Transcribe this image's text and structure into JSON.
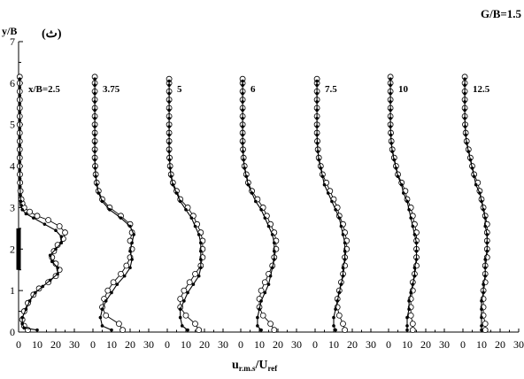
{
  "chart_data": {
    "type": "line",
    "title": "G/B=1.5",
    "panel_label": "(ث)",
    "ylabel": "y/B",
    "xlabel_main": "u",
    "xlabel_sub": "r.m.s",
    "xlabel_den": "/U",
    "xlabel_den_sub": "ref",
    "ylim": [
      0,
      7
    ],
    "yticks": [
      "0",
      "1",
      "2",
      "3",
      "4",
      "5",
      "6",
      "7"
    ],
    "xlim": [
      0,
      30
    ],
    "xticks": [
      "0",
      "10",
      "20",
      "30"
    ],
    "panels": [
      {
        "label": "x/B=2.5",
        "series": [
          {
            "marker": "open-circle",
            "y": [
              0.05,
              0.15,
              0.3,
              0.5,
              0.7,
              0.9,
              1.05,
              1.2,
              1.35,
              1.5,
              1.65,
              1.8,
              1.95,
              2.1,
              2.25,
              2.4,
              2.55,
              2.7,
              2.8,
              2.9,
              3.0,
              3.1,
              3.2,
              3.4,
              3.6,
              3.8,
              4.0,
              4.2,
              4.4,
              4.6,
              4.8,
              5.0,
              5.2,
              5.4,
              5.6,
              5.8,
              6.0,
              6.15
            ],
            "x": [
              5,
              3,
              2,
              3,
              5,
              8,
              11,
              16,
              20,
              22,
              20,
              18,
              19,
              21,
              24,
              25,
              22,
              16,
              10,
              6,
              3,
              2,
              1.5,
              1,
              0.8,
              0.7,
              0.6,
              0.6,
              0.6,
              0.6,
              0.6,
              0.6,
              0.6,
              0.6,
              0.6,
              0.6,
              0.6,
              0.6
            ]
          },
          {
            "marker": "filled-dot",
            "y": [
              0.05,
              0.1,
              0.2,
              0.35,
              0.55,
              0.75,
              0.95,
              1.1,
              1.25,
              1.4,
              1.55,
              1.7,
              1.85,
              2.0,
              2.15,
              2.3,
              2.45,
              2.6,
              2.75,
              2.85,
              2.95,
              3.05,
              3.15,
              3.3,
              3.5,
              3.7,
              3.9,
              4.1,
              4.3,
              4.5,
              4.7,
              4.9,
              5.1,
              5.3,
              5.5,
              5.7,
              5.9,
              6.1
            ],
            "x": [
              10,
              3,
              2,
              2,
              4,
              6,
              9,
              13,
              17,
              21,
              21,
              18,
              17,
              20,
              23,
              23,
              20,
              14,
              8,
              4,
              2,
              1.5,
              1.2,
              1,
              0.8,
              0.7,
              0.6,
              0.6,
              0.6,
              0.6,
              0.6,
              0.6,
              0.6,
              0.6,
              0.6,
              0.6,
              0.6,
              0.6
            ]
          }
        ]
      },
      {
        "label": "3.75",
        "series": [
          {
            "marker": "open-circle",
            "y": [
              0.05,
              0.2,
              0.4,
              0.6,
              0.8,
              1.0,
              1.2,
              1.4,
              1.6,
              1.8,
              2.0,
              2.2,
              2.4,
              2.6,
              2.8,
              3.0,
              3.2,
              3.4,
              3.6,
              3.8,
              4.0,
              4.2,
              4.4,
              4.6,
              4.8,
              5.0,
              5.2,
              5.4,
              5.6,
              5.8,
              6.0,
              6.15
            ],
            "x": [
              16,
              14,
              7,
              5,
              6,
              8,
              11,
              15,
              18,
              20,
              21,
              20,
              21,
              20,
              15,
              9,
              5,
              3,
              2,
              1.5,
              1.2,
              1,
              1,
              1,
              1,
              1,
              1,
              1,
              1,
              1,
              1,
              1
            ]
          },
          {
            "marker": "filled-dot",
            "y": [
              0.05,
              0.15,
              0.35,
              0.55,
              0.75,
              0.95,
              1.15,
              1.35,
              1.55,
              1.75,
              1.95,
              2.15,
              2.35,
              2.55,
              2.75,
              2.95,
              3.15,
              3.35,
              3.55,
              3.75,
              3.95,
              4.15,
              4.35,
              4.55,
              4.75,
              4.95,
              5.15,
              5.35,
              5.55,
              5.75,
              5.95,
              6.1
            ],
            "x": [
              10,
              5,
              4,
              5,
              7,
              10,
              13,
              17,
              20,
              21,
              20,
              21,
              22,
              20,
              15,
              9,
              5,
              3,
              2,
              1.5,
              1.2,
              1,
              1,
              1,
              1,
              1,
              1,
              1,
              1,
              1,
              1,
              1
            ]
          }
        ]
      },
      {
        "label": "5",
        "series": [
          {
            "marker": "open-circle",
            "y": [
              0.05,
              0.2,
              0.4,
              0.6,
              0.8,
              1.0,
              1.2,
              1.4,
              1.6,
              1.8,
              2.0,
              2.2,
              2.4,
              2.6,
              2.8,
              3.0,
              3.2,
              3.4,
              3.6,
              3.8,
              4.0,
              4.2,
              4.4,
              4.6,
              4.8,
              5.0,
              5.2,
              5.4,
              5.6,
              5.8,
              6.0,
              6.1
            ],
            "x": [
              17,
              15,
              10,
              7,
              7,
              9,
              12,
              15,
              18,
              19,
              19,
              19,
              18,
              16,
              14,
              11,
              7,
              5,
              3,
              2,
              1.5,
              1.2,
              1,
              1,
              1,
              1,
              1,
              1,
              1,
              1,
              1,
              1
            ]
          },
          {
            "marker": "filled-dot",
            "y": [
              0.05,
              0.15,
              0.35,
              0.55,
              0.75,
              0.95,
              1.15,
              1.35,
              1.55,
              1.75,
              1.95,
              2.15,
              2.35,
              2.55,
              2.75,
              2.95,
              3.15,
              3.35,
              3.55,
              3.75,
              3.95,
              4.15,
              4.35,
              4.55,
              4.75,
              4.95,
              5.15,
              5.35,
              5.55,
              5.75,
              5.95,
              6.05
            ],
            "x": [
              11,
              8,
              7,
              7,
              9,
              11,
              14,
              17,
              18,
              18,
              18,
              18,
              17,
              15,
              13,
              10,
              7,
              5,
              3,
              2,
              1.5,
              1.2,
              1,
              1,
              1,
              1,
              1,
              1,
              1,
              1,
              1,
              1
            ]
          }
        ]
      },
      {
        "label": "6",
        "series": [
          {
            "marker": "open-circle",
            "y": [
              0.05,
              0.2,
              0.4,
              0.6,
              0.8,
              1.0,
              1.2,
              1.4,
              1.6,
              1.8,
              2.0,
              2.2,
              2.4,
              2.6,
              2.8,
              3.0,
              3.2,
              3.4,
              3.6,
              3.8,
              4.0,
              4.2,
              4.4,
              4.6,
              4.8,
              5.0,
              5.2,
              5.4,
              5.6,
              5.8,
              6.0,
              6.1
            ],
            "x": [
              18,
              16,
              12,
              10,
              10,
              11,
              13,
              15,
              17,
              18,
              19,
              19,
              18,
              16,
              14,
              12,
              9,
              6,
              4,
              3,
              2,
              1.5,
              1.2,
              1,
              1,
              1,
              1,
              1,
              1,
              1,
              1,
              1
            ]
          },
          {
            "marker": "filled-dot",
            "y": [
              0.05,
              0.15,
              0.35,
              0.55,
              0.75,
              0.95,
              1.15,
              1.35,
              1.55,
              1.75,
              1.95,
              2.15,
              2.35,
              2.55,
              2.75,
              2.95,
              3.15,
              3.35,
              3.55,
              3.75,
              3.95,
              4.15,
              4.35,
              4.55,
              4.75,
              4.95,
              5.15,
              5.35,
              5.55,
              5.75,
              5.95,
              6.05
            ],
            "x": [
              11,
              9,
              9,
              10,
              11,
              13,
              15,
              16,
              17,
              18,
              18,
              18,
              17,
              15,
              13,
              11,
              8,
              6,
              4,
              3,
              2,
              1.5,
              1.2,
              1,
              1,
              1,
              1,
              1,
              1,
              1,
              1,
              1
            ]
          }
        ]
      },
      {
        "label": "7.5",
        "series": [
          {
            "marker": "open-circle",
            "y": [
              0.05,
              0.2,
              0.4,
              0.6,
              0.8,
              1.0,
              1.2,
              1.4,
              1.6,
              1.8,
              2.0,
              2.2,
              2.4,
              2.6,
              2.8,
              3.0,
              3.2,
              3.4,
              3.6,
              3.8,
              4.0,
              4.2,
              4.4,
              4.6,
              4.8,
              5.0,
              5.2,
              5.4,
              5.6,
              5.8,
              6.0,
              6.1
            ],
            "x": [
              16,
              15,
              13,
              12,
              12,
              13,
              14,
              15,
              16,
              16,
              17,
              17,
              16,
              15,
              13,
              12,
              10,
              8,
              6,
              4,
              3,
              2,
              1.5,
              1.2,
              1,
              1,
              1,
              1,
              1,
              1,
              1,
              1
            ]
          },
          {
            "marker": "filled-dot",
            "y": [
              0.05,
              0.15,
              0.35,
              0.55,
              0.75,
              0.95,
              1.15,
              1.35,
              1.55,
              1.75,
              1.95,
              2.15,
              2.35,
              2.55,
              2.75,
              2.95,
              3.15,
              3.35,
              3.55,
              3.75,
              3.95,
              4.15,
              4.35,
              4.55,
              4.75,
              4.95,
              5.15,
              5.35,
              5.55,
              5.75,
              5.95,
              6.05
            ],
            "x": [
              11,
              10,
              10,
              11,
              12,
              13,
              14,
              15,
              15,
              16,
              16,
              16,
              15,
              14,
              13,
              11,
              9,
              7,
              5,
              4,
              3,
              2,
              1.5,
              1.2,
              1,
              1,
              1,
              1,
              1,
              1,
              1,
              1
            ]
          }
        ]
      },
      {
        "label": "10",
        "series": [
          {
            "marker": "open-circle",
            "y": [
              0.05,
              0.2,
              0.4,
              0.6,
              0.8,
              1.0,
              1.2,
              1.4,
              1.6,
              1.8,
              2.0,
              2.2,
              2.4,
              2.6,
              2.8,
              3.0,
              3.2,
              3.4,
              3.6,
              3.8,
              4.0,
              4.2,
              4.4,
              4.6,
              4.8,
              5.0,
              5.2,
              5.4,
              5.6,
              5.8,
              6.0,
              6.15
            ],
            "x": [
              13,
              13,
              12,
              12,
              12,
              13,
              13,
              14,
              15,
              15,
              15,
              15,
              15,
              14,
              13,
              12,
              10,
              9,
              7,
              5,
              4,
              3,
              2,
              1.5,
              1.2,
              1,
              1,
              1,
              1,
              1,
              1,
              1
            ]
          },
          {
            "marker": "filled-dot",
            "y": [
              0.05,
              0.15,
              0.35,
              0.55,
              0.75,
              0.95,
              1.15,
              1.35,
              1.55,
              1.75,
              1.95,
              2.15,
              2.35,
              2.55,
              2.75,
              2.95,
              3.15,
              3.35,
              3.55,
              3.75,
              3.95,
              4.15,
              4.35,
              4.55,
              4.75,
              4.95,
              5.15,
              5.35,
              5.55,
              5.75,
              5.95,
              6.1
            ],
            "x": [
              10,
              10,
              10,
              11,
              11,
              12,
              13,
              14,
              14,
              15,
              15,
              15,
              14,
              13,
              12,
              11,
              10,
              8,
              7,
              5,
              4,
              3,
              2,
              1.5,
              1.2,
              1,
              1,
              1,
              1,
              1,
              1,
              1
            ]
          }
        ]
      },
      {
        "label": "12.5",
        "series": [
          {
            "marker": "open-circle",
            "y": [
              0.05,
              0.2,
              0.4,
              0.6,
              0.8,
              1.0,
              1.2,
              1.4,
              1.6,
              1.8,
              2.0,
              2.2,
              2.4,
              2.6,
              2.8,
              3.0,
              3.2,
              3.4,
              3.6,
              3.8,
              4.0,
              4.2,
              4.4,
              4.6,
              4.8,
              5.0,
              5.2,
              5.4,
              5.6,
              5.8,
              6.0,
              6.15
            ],
            "x": [
              12,
              12,
              11,
              11,
              11,
              11,
              12,
              12,
              12,
              13,
              13,
              13,
              13,
              13,
              12,
              11,
              10,
              9,
              8,
              6,
              5,
              4,
              3,
              2,
              1.5,
              1.2,
              1,
              1,
              1,
              1,
              1,
              1
            ]
          },
          {
            "marker": "filled-dot",
            "y": [
              0.05,
              0.15,
              0.35,
              0.55,
              0.75,
              0.95,
              1.15,
              1.35,
              1.55,
              1.75,
              1.95,
              2.15,
              2.35,
              2.55,
              2.75,
              2.95,
              3.15,
              3.35,
              3.55,
              3.75,
              3.95,
              4.15,
              4.35,
              4.55,
              4.75,
              4.95,
              5.15,
              5.35,
              5.55,
              5.75,
              5.95,
              6.1
            ],
            "x": [
              10,
              10,
              10,
              10,
              10,
              11,
              11,
              12,
              12,
              12,
              13,
              13,
              13,
              12,
              12,
              11,
              10,
              9,
              7,
              6,
              5,
              4,
              3,
              2,
              1.5,
              1.2,
              1,
              1,
              1,
              1,
              1,
              1
            ]
          }
        ]
      }
    ],
    "body_marker": {
      "y_range": [
        1.5,
        2.5
      ]
    },
    "grid": false,
    "legend": "none"
  }
}
